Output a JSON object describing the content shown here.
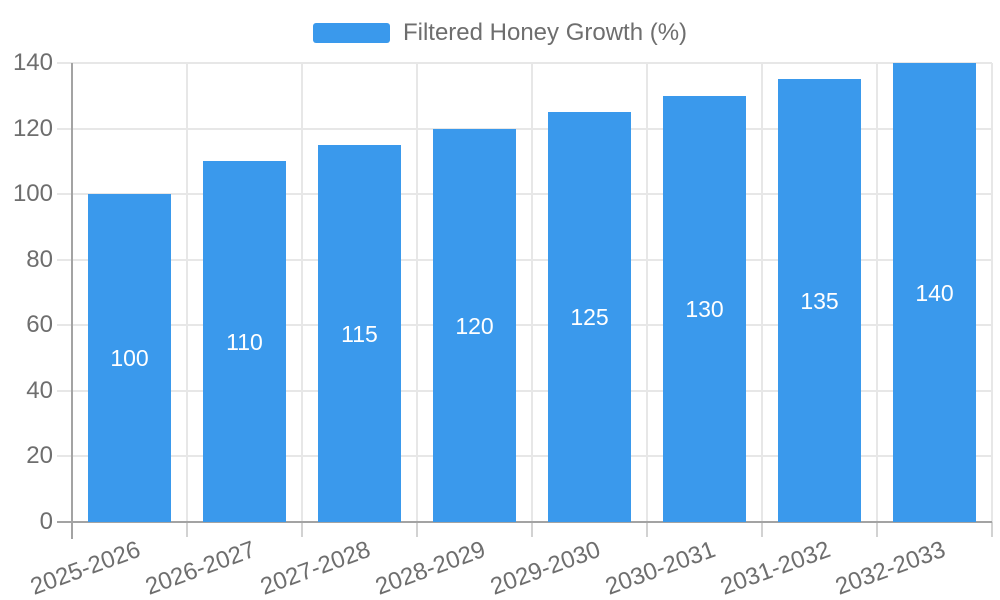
{
  "chart_data": {
    "type": "bar",
    "title": "",
    "legend": "Filtered Honey Growth (%)",
    "legend_position": "top",
    "categories": [
      "2025-2026",
      "2026-2027",
      "2027-2028",
      "2028-2029",
      "2029-2030",
      "2030-2031",
      "2031-2032",
      "2032-2033"
    ],
    "series": [
      {
        "name": "Filtered Honey Growth (%)",
        "values": [
          100,
          110,
          115,
          120,
          125,
          130,
          135,
          140
        ]
      }
    ],
    "value_labels": [
      "100",
      "110",
      "115",
      "120",
      "125",
      "130",
      "135",
      "140"
    ],
    "xlabel": "",
    "ylabel": "",
    "ylim": [
      0,
      140
    ],
    "ytick_step": 20,
    "yticks": [
      "0",
      "20",
      "40",
      "60",
      "80",
      "100",
      "120",
      "140"
    ],
    "grid": "on",
    "x_label_rotation_deg": -20,
    "colors": {
      "bar": "#3A99EC",
      "bar_value_label": "#FFFFFF",
      "axis_label": "#6E6E6E",
      "axis_line": "#A3A3A3",
      "gridline": "#E7E7E7",
      "background": "#FFFFFF"
    }
  }
}
